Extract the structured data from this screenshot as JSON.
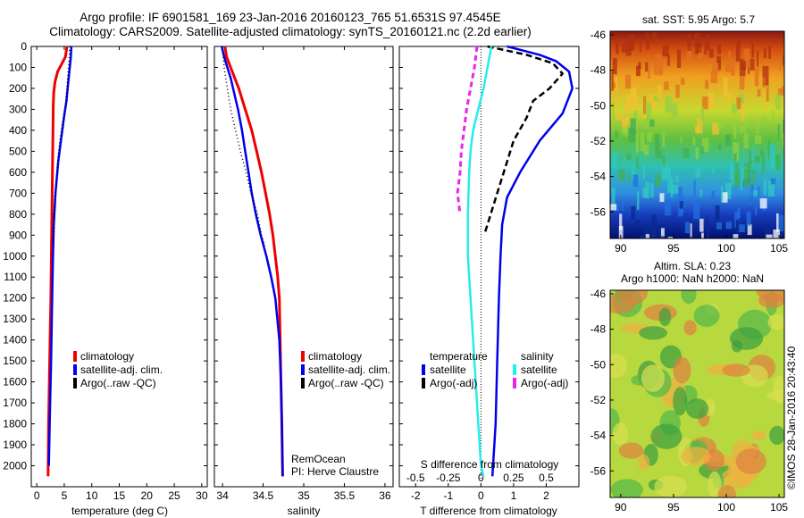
{
  "title_line1": "Argo profile: IF 6901581_169 23-Jan-2016 20160123_765 51.6531S 97.4545E",
  "title_line2": "Climatology: CARS2009. Satellite-adjusted climatology: synTS_20160121.nc (2.2d earlier)",
  "colors": {
    "climatology": "#ee0000",
    "satellite": "#0000ee",
    "argo": "#000000",
    "sal_satellite": "#22eeee",
    "sal_argo": "#ee22ee"
  },
  "chart_data": [
    {
      "type": "line",
      "xlabel": "temperature (deg C)",
      "ylabel": "",
      "xlim": [
        -1,
        31
      ],
      "ylim": [
        2100,
        0
      ],
      "x_ticks": [
        "0",
        "5",
        "10",
        "15",
        "20",
        "25",
        "30"
      ],
      "y_ticks": [
        "0",
        "100",
        "200",
        "300",
        "400",
        "500",
        "600",
        "700",
        "800",
        "900",
        "1000",
        "1100",
        "1200",
        "1300",
        "1400",
        "1500",
        "1600",
        "1700",
        "1800",
        "1900",
        "2000"
      ],
      "legend": [
        "climatology",
        "satellite-adj. clim.",
        "Argo(..raw -QC)"
      ],
      "legend_position": "lower-center",
      "series": [
        {
          "name": "climatology",
          "role": "climatology",
          "points": [
            [
              5.5,
              0
            ],
            [
              5.2,
              50
            ],
            [
              4.6,
              80
            ],
            [
              3.8,
              120
            ],
            [
              3.3,
              170
            ],
            [
              3.1,
              220
            ],
            [
              3.0,
              280
            ],
            [
              2.95,
              400
            ],
            [
              2.85,
              600
            ],
            [
              2.7,
              900
            ],
            [
              2.55,
              1200
            ],
            [
              2.35,
              1500
            ],
            [
              2.15,
              1800
            ],
            [
              2.05,
              2050
            ]
          ]
        },
        {
          "name": "satellite-adj. clim.",
          "role": "satellite",
          "points": [
            [
              6.3,
              0
            ],
            [
              6.2,
              50
            ],
            [
              6.0,
              100
            ],
            [
              5.7,
              180
            ],
            [
              5.4,
              260
            ],
            [
              5.0,
              330
            ],
            [
              4.4,
              450
            ],
            [
              3.9,
              550
            ],
            [
              3.4,
              700
            ],
            [
              3.1,
              850
            ],
            [
              2.95,
              1000
            ],
            [
              2.8,
              1200
            ],
            [
              2.6,
              1500
            ],
            [
              2.35,
              1800
            ],
            [
              2.2,
              2000
            ]
          ]
        },
        {
          "name": "Argo(..raw -QC)",
          "role": "argo",
          "points": [
            [
              6.0,
              0
            ],
            [
              5.9,
              60
            ],
            [
              5.7,
              120
            ],
            [
              5.5,
              200
            ],
            [
              5.2,
              280
            ],
            [
              4.7,
              360
            ],
            [
              4.2,
              450
            ],
            [
              3.8,
              550
            ],
            [
              3.4,
              700
            ],
            [
              3.1,
              850
            ],
            [
              2.95,
              950
            ]
          ]
        }
      ]
    },
    {
      "type": "line",
      "xlabel": "salinity",
      "ylabel": "",
      "xlim": [
        33.9,
        36.1
      ],
      "ylim": [
        2100,
        0
      ],
      "x_ticks": [
        "34",
        "34.5",
        "35",
        "35.5",
        "36"
      ],
      "legend": [
        "climatology",
        "satellite-adj. clim.",
        "Argo(..raw -QC)"
      ],
      "legend_position": "lower-center",
      "annotations": [
        "RemOcean",
        "PI: Herve Claustre"
      ],
      "series": [
        {
          "name": "climatology",
          "role": "climatology",
          "points": [
            [
              34.03,
              0
            ],
            [
              34.05,
              50
            ],
            [
              34.1,
              100
            ],
            [
              34.15,
              150
            ],
            [
              34.2,
              200
            ],
            [
              34.28,
              300
            ],
            [
              34.36,
              400
            ],
            [
              34.42,
              500
            ],
            [
              34.48,
              600
            ],
            [
              34.53,
              700
            ],
            [
              34.58,
              800
            ],
            [
              34.62,
              900
            ],
            [
              34.65,
              1000
            ],
            [
              34.68,
              1100
            ],
            [
              34.7,
              1200
            ],
            [
              34.71,
              1400
            ],
            [
              34.72,
              1600
            ],
            [
              34.73,
              1800
            ],
            [
              34.74,
              2050
            ]
          ]
        },
        {
          "name": "satellite-adj. clim.",
          "role": "satellite",
          "points": [
            [
              33.99,
              0
            ],
            [
              34.02,
              50
            ],
            [
              34.06,
              100
            ],
            [
              34.1,
              150
            ],
            [
              34.13,
              200
            ],
            [
              34.19,
              300
            ],
            [
              34.24,
              400
            ],
            [
              34.28,
              500
            ],
            [
              34.32,
              600
            ],
            [
              34.36,
              700
            ],
            [
              34.41,
              800
            ],
            [
              34.47,
              900
            ],
            [
              34.54,
              1000
            ],
            [
              34.6,
              1100
            ],
            [
              34.65,
              1200
            ],
            [
              34.7,
              1400
            ],
            [
              34.72,
              1600
            ],
            [
              34.73,
              1800
            ],
            [
              34.74,
              2050
            ]
          ]
        },
        {
          "name": "Argo(..raw -QC)",
          "role": "argo",
          "points": [
            [
              34.0,
              0
            ],
            [
              34.01,
              50
            ],
            [
              34.02,
              100
            ],
            [
              34.04,
              150
            ],
            [
              34.06,
              200
            ],
            [
              34.1,
              300
            ],
            [
              34.16,
              400
            ],
            [
              34.22,
              500
            ],
            [
              34.29,
              600
            ],
            [
              34.35,
              700
            ],
            [
              34.43,
              800
            ],
            [
              34.48,
              900
            ],
            [
              34.52,
              950
            ]
          ]
        }
      ]
    },
    {
      "type": "line",
      "xlabel": "T difference from climatology",
      "xlabel_top": "S difference from climatology",
      "ylabel": "",
      "xlim": [
        -2.5,
        3.0
      ],
      "ylim": [
        2100,
        0
      ],
      "x_ticks": [
        "-2",
        "-1",
        "0",
        "1",
        "2"
      ],
      "x_ticks_secondary": [
        "-0.5",
        "-0.25",
        "0",
        "0.25",
        "0.5"
      ],
      "legend_groups": [
        {
          "title": "temperature",
          "items": [
            "satellite",
            "Argo(-adj)"
          ]
        },
        {
          "title": "salinity",
          "items": [
            "satellite",
            "Argo(-adj)"
          ]
        }
      ],
      "series": [
        {
          "name": "satellite",
          "group": "temperature",
          "role": "satellite",
          "points": [
            [
              0.8,
              0
            ],
            [
              1.3,
              20
            ],
            [
              1.8,
              40
            ],
            [
              2.3,
              70
            ],
            [
              2.7,
              120
            ],
            [
              2.8,
              200
            ],
            [
              2.5,
              320
            ],
            [
              1.8,
              450
            ],
            [
              1.2,
              600
            ],
            [
              0.8,
              720
            ],
            [
              0.65,
              850
            ],
            [
              0.6,
              1000
            ],
            [
              0.55,
              1200
            ],
            [
              0.5,
              1500
            ],
            [
              0.45,
              1800
            ],
            [
              0.35,
              2050
            ]
          ]
        },
        {
          "name": "Argo(-adj)",
          "group": "temperature",
          "role": "argo",
          "points": [
            [
              0.2,
              0
            ],
            [
              0.8,
              20
            ],
            [
              1.4,
              40
            ],
            [
              1.8,
              60
            ],
            [
              2.2,
              80
            ],
            [
              2.5,
              130
            ],
            [
              2.1,
              200
            ],
            [
              1.6,
              260
            ],
            [
              1.4,
              340
            ],
            [
              1.0,
              450
            ],
            [
              0.8,
              550
            ],
            [
              0.5,
              700
            ],
            [
              0.3,
              800
            ],
            [
              0.1,
              900
            ]
          ]
        },
        {
          "name": "satellite",
          "group": "salinity",
          "role": "sal_satellite",
          "points": [
            [
              0.08,
              0
            ],
            [
              0.05,
              100
            ],
            [
              0.02,
              200
            ],
            [
              -0.02,
              300
            ],
            [
              -0.06,
              400
            ],
            [
              -0.08,
              500
            ],
            [
              -0.09,
              600
            ],
            [
              -0.1,
              800
            ],
            [
              -0.1,
              1000
            ],
            [
              -0.08,
              1200
            ],
            [
              -0.06,
              1400
            ],
            [
              -0.04,
              1600
            ],
            [
              -0.02,
              1800
            ],
            [
              0.0,
              2000
            ],
            [
              0.02,
              2050
            ]
          ]
        },
        {
          "name": "Argo(-adj)",
          "group": "salinity",
          "role": "sal_argo",
          "points": [
            [
              -0.03,
              0
            ],
            [
              -0.05,
              100
            ],
            [
              -0.08,
              200
            ],
            [
              -0.11,
              300
            ],
            [
              -0.13,
              400
            ],
            [
              -0.15,
              500
            ],
            [
              -0.16,
              600
            ],
            [
              -0.18,
              700
            ],
            [
              -0.16,
              800
            ]
          ]
        }
      ]
    },
    {
      "type": "heatmap",
      "title": "sat. SST: 5.95 Argo: 5.7",
      "x_ticks": [
        "90",
        "95",
        "100",
        "105"
      ],
      "y_ticks": [
        "-46",
        "-48",
        "-50",
        "-52",
        "-54",
        "-56"
      ],
      "xlim": [
        89,
        105.5
      ],
      "ylim": [
        -57.5,
        -45.8
      ]
    },
    {
      "type": "heatmap",
      "title_lines": [
        "Altim. SLA: 0.23",
        "Argo h1000: NaN h2000: NaN"
      ],
      "x_ticks": [
        "90",
        "95",
        "100",
        "105"
      ],
      "y_ticks": [
        "-46",
        "-48",
        "-50",
        "-52",
        "-54",
        "-56"
      ],
      "xlim": [
        89,
        105.5
      ],
      "ylim": [
        -57.5,
        -45.8
      ]
    }
  ],
  "credit": "©IMOS 28-Jan-2016 20:43:40"
}
